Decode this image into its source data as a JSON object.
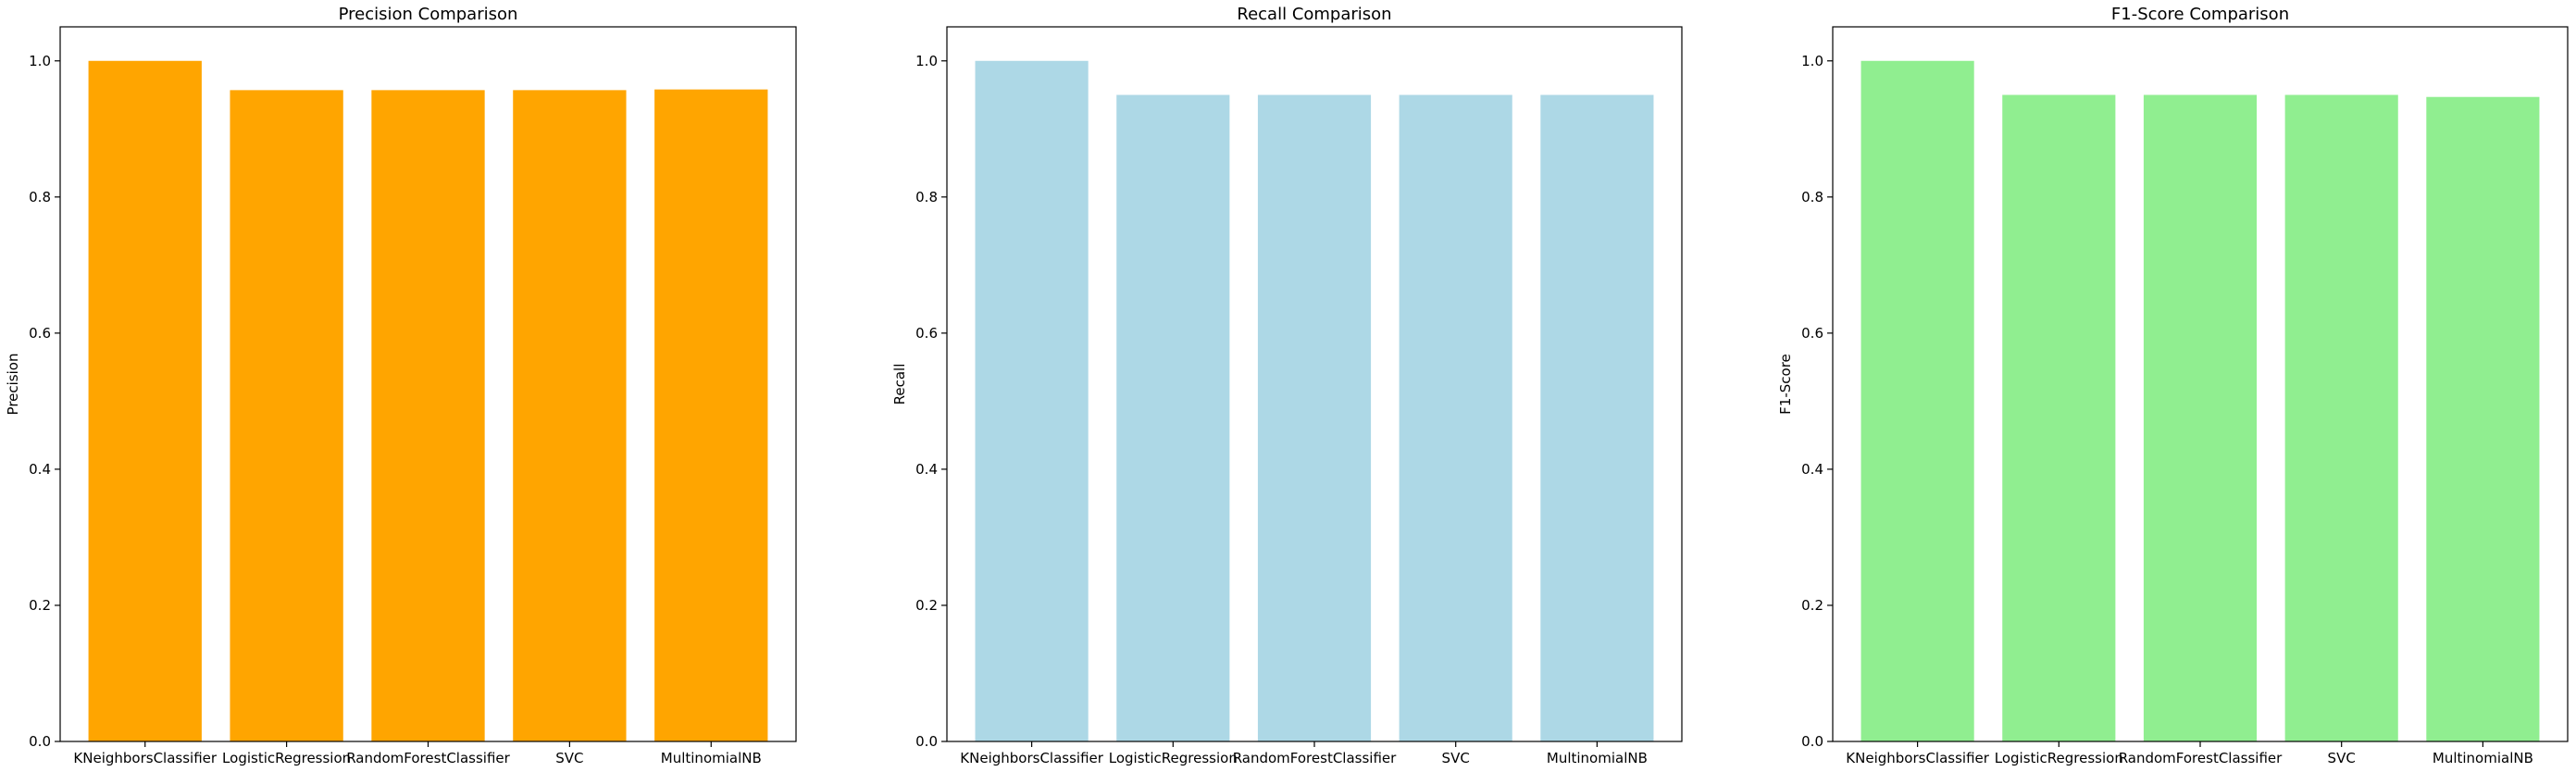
{
  "chart_data": [
    {
      "type": "bar",
      "title": "Precision Comparison",
      "xlabel": "",
      "ylabel": "Precision",
      "categories": [
        "KNeighborsClassifier",
        "LogisticRegression",
        "RandomForestClassifier",
        "SVC",
        "MultinomialNB"
      ],
      "values": [
        1.0,
        0.957,
        0.957,
        0.957,
        0.958
      ],
      "color": "#FFA500",
      "ylim": [
        0,
        1.05
      ],
      "yticks": [
        "0.0",
        "0.2",
        "0.4",
        "0.6",
        "0.8",
        "1.0"
      ],
      "grid": false,
      "legend": "none"
    },
    {
      "type": "bar",
      "title": "Recall Comparison",
      "xlabel": "",
      "ylabel": "Recall",
      "categories": [
        "KNeighborsClassifier",
        "LogisticRegression",
        "RandomForestClassifier",
        "SVC",
        "MultinomialNB"
      ],
      "values": [
        1.0,
        0.95,
        0.95,
        0.95,
        0.95
      ],
      "color": "#ADD8E6",
      "ylim": [
        0,
        1.05
      ],
      "yticks": [
        "0.0",
        "0.2",
        "0.4",
        "0.6",
        "0.8",
        "1.0"
      ],
      "grid": false,
      "legend": "none"
    },
    {
      "type": "bar",
      "title": "F1-Score Comparison",
      "xlabel": "",
      "ylabel": "F1-Score",
      "categories": [
        "KNeighborsClassifier",
        "LogisticRegression",
        "RandomForestClassifier",
        "SVC",
        "MultinomialNB"
      ],
      "values": [
        1.0,
        0.95,
        0.95,
        0.95,
        0.947
      ],
      "color": "#90EE90",
      "ylim": [
        0,
        1.05
      ],
      "yticks": [
        "0.0",
        "0.2",
        "0.4",
        "0.6",
        "0.8",
        "1.0"
      ],
      "grid": false,
      "legend": "none"
    }
  ]
}
